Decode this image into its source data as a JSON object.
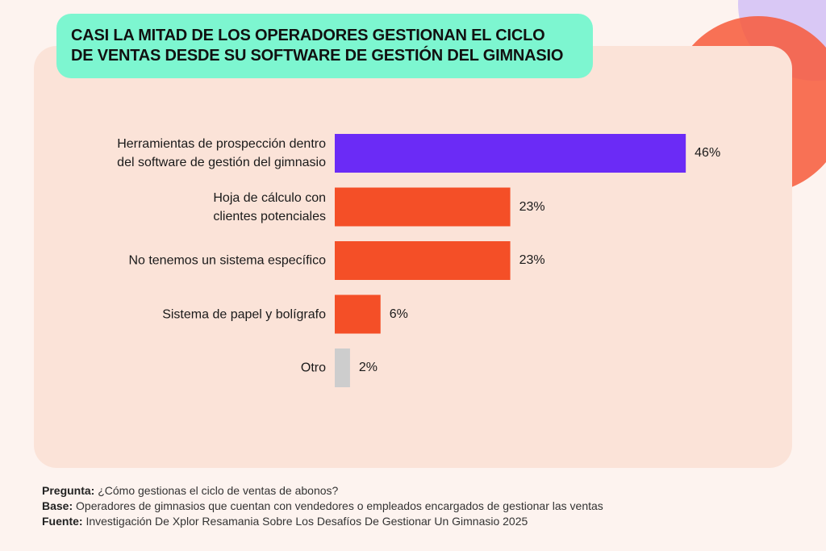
{
  "chart_data": {
    "type": "bar",
    "orientation": "horizontal",
    "title": "CASI LA MITAD DE LOS OPERADORES GESTIONAN EL CICLO\nDE VENTAS DESDE SU SOFTWARE DE GESTIÓN DEL GIMNASIO",
    "categories": [
      "Herramientas de prospección dentro\ndel software de gestión del gimnasio",
      "Hoja de cálculo con\nclientes potenciales",
      "No tenemos un sistema específico",
      "Sistema de papel y bolígrafo",
      "Otro"
    ],
    "values": [
      46,
      23,
      23,
      6,
      2
    ],
    "value_labels": [
      "46%",
      "23%",
      "23%",
      "6%",
      "2%"
    ],
    "colors": [
      "#6b2bf6",
      "#f44f27",
      "#f44f27",
      "#f44f27",
      "#cdcdcd"
    ],
    "notes": [
      {
        "label": "Pregunta:",
        "text": "¿Cómo gestionas el ciclo de ventas de abonos?"
      },
      {
        "label": "Base:",
        "text": "Operadores de gimnasios que cuentan con vendedores o empleados encargados de gestionar las ventas"
      },
      {
        "label": "Fuente:",
        "text": "Investigación De Xplor Resamania Sobre Los Desafíos De Gestionar Un Gimnasio 2025"
      }
    ]
  }
}
